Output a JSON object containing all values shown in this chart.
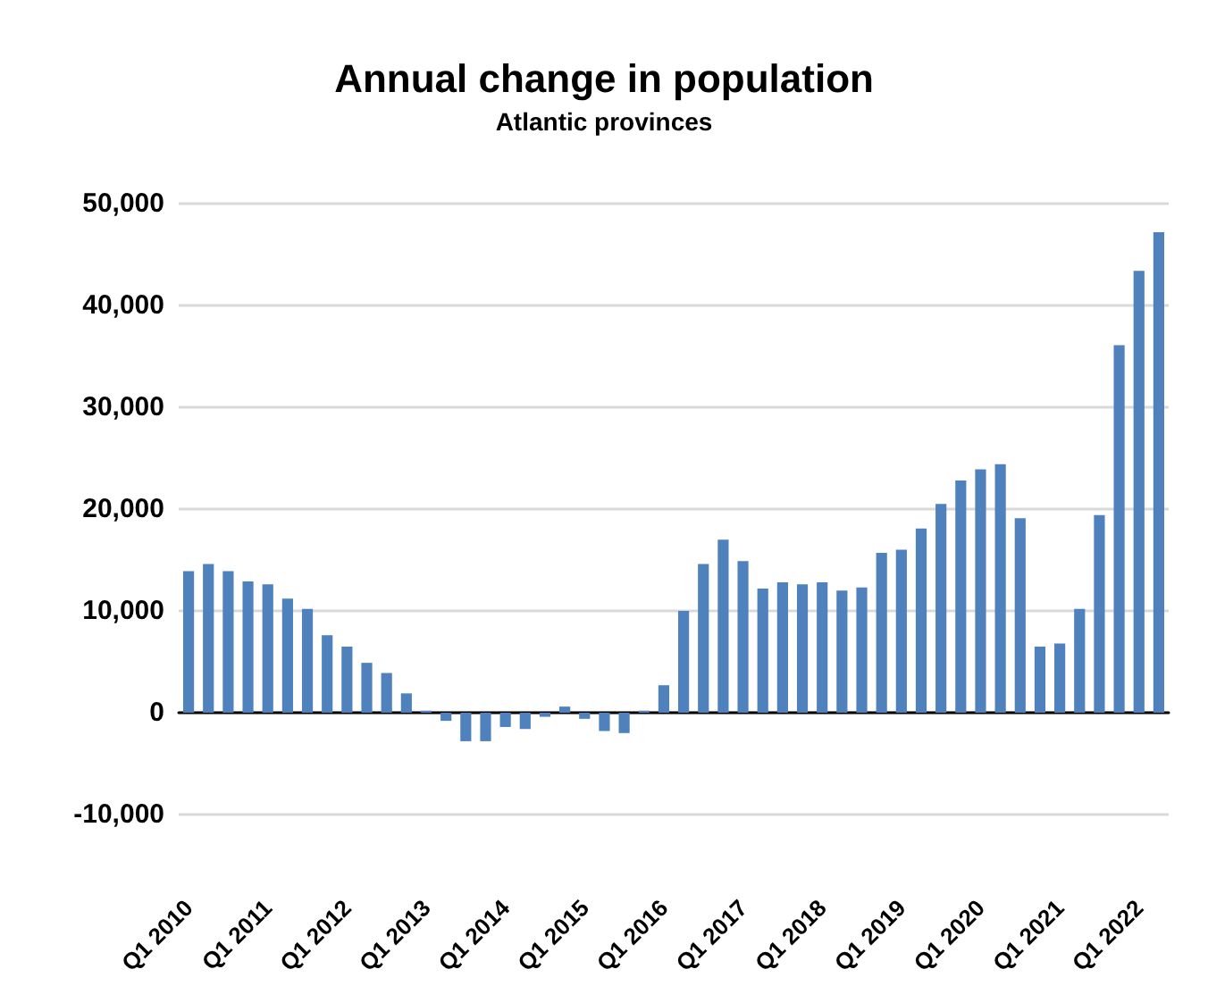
{
  "chart_data": {
    "type": "bar",
    "title": "Annual change in population",
    "subtitle": "Atlantic provinces",
    "categories": [
      "Q1 2010",
      null,
      null,
      null,
      "Q1 2011",
      null,
      null,
      null,
      "Q1 2012",
      null,
      null,
      null,
      "Q1 2013",
      null,
      null,
      null,
      "Q1 2014",
      null,
      null,
      null,
      "Q1 2015",
      null,
      null,
      null,
      "Q1 2016",
      null,
      null,
      null,
      "Q1 2017",
      null,
      null,
      null,
      "Q1 2018",
      null,
      null,
      null,
      "Q1 2019",
      null,
      null,
      null,
      "Q1 2020",
      null,
      null,
      null,
      "Q1 2021",
      null,
      null,
      null,
      "Q1 2022",
      null
    ],
    "values": [
      13900,
      14600,
      13900,
      12900,
      12600,
      11200,
      10200,
      7600,
      6500,
      4900,
      3900,
      1900,
      200,
      -800,
      -2800,
      -2800,
      -1400,
      -1600,
      -400,
      600,
      -600,
      -1800,
      -2000,
      200,
      2700,
      10000,
      14600,
      17000,
      14900,
      12200,
      12800,
      12600,
      12800,
      12000,
      12300,
      15700,
      16000,
      18100,
      20500,
      22800,
      23900,
      24400,
      19100,
      6500,
      6800,
      10200,
      19400,
      36100,
      43400,
      47200
    ],
    "color": "#4f81bd",
    "ylim": [
      -10000,
      50000
    ],
    "yticks": [
      {
        "value": -10000,
        "label": "-10,000"
      },
      0,
      {
        "value": 10000,
        "label": "10,000"
      },
      {
        "value": 20000,
        "label": "20,000"
      },
      {
        "value": 30000,
        "label": "30,000"
      },
      {
        "value": 40000,
        "label": "40,000"
      },
      {
        "value": 50000,
        "label": "50,000"
      }
    ],
    "grid": "y"
  }
}
